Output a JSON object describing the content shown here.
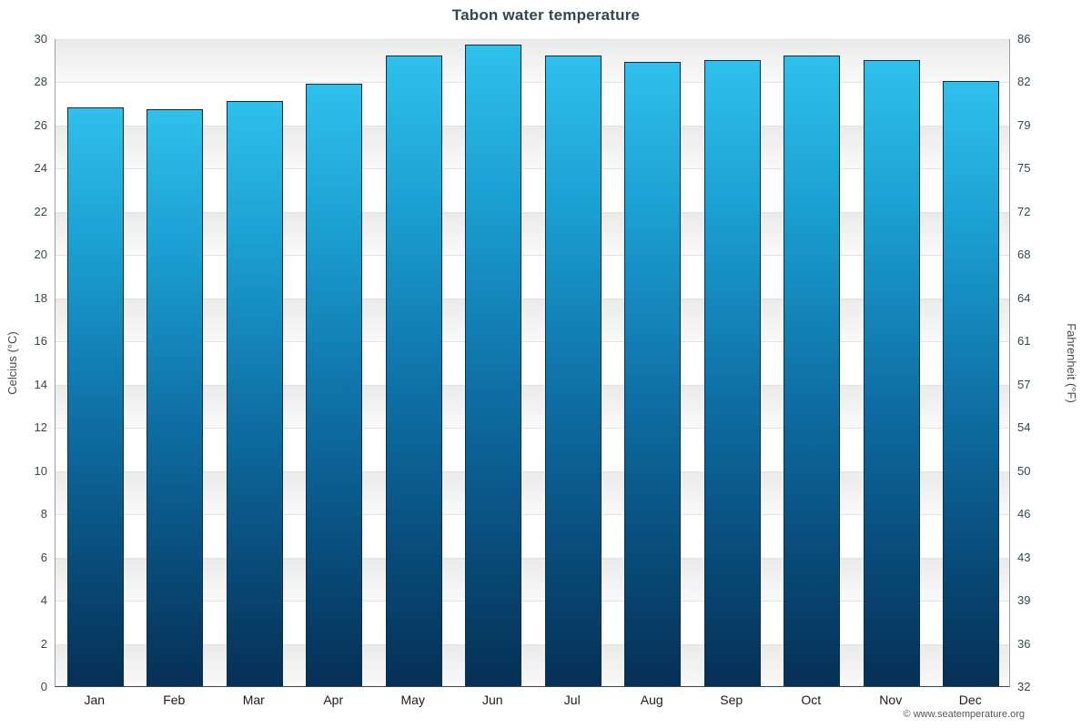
{
  "title": "Tabon water temperature",
  "footer": "© www.seatemperature.org",
  "chart_data": {
    "type": "bar",
    "title": "Tabon water temperature",
    "categories": [
      "Jan",
      "Feb",
      "Mar",
      "Apr",
      "May",
      "Jun",
      "Jul",
      "Aug",
      "Sep",
      "Oct",
      "Nov",
      "Dec"
    ],
    "values": [
      26.8,
      26.7,
      27.1,
      27.9,
      29.2,
      29.7,
      29.2,
      28.9,
      29.0,
      29.2,
      29.0,
      28.0
    ],
    "ylabel_left": "Celcius (°C)",
    "ylabel_right": "Fahrenheit (°F)",
    "ylim": [
      0,
      30
    ],
    "yticks_celsius": [
      0,
      2,
      4,
      6,
      8,
      10,
      12,
      14,
      16,
      18,
      20,
      22,
      24,
      26,
      28,
      30
    ],
    "yticks_fahrenheit": [
      32,
      36,
      39,
      43,
      46,
      50,
      54,
      57,
      61,
      64,
      68,
      72,
      75,
      79,
      82,
      86
    ],
    "grid": true,
    "legend": "none",
    "bar_color_top": "#2fc0ed",
    "bar_color_bottom": "#063056",
    "bar_border_color": "#0e2f42",
    "band_color": "#eaeaea"
  }
}
